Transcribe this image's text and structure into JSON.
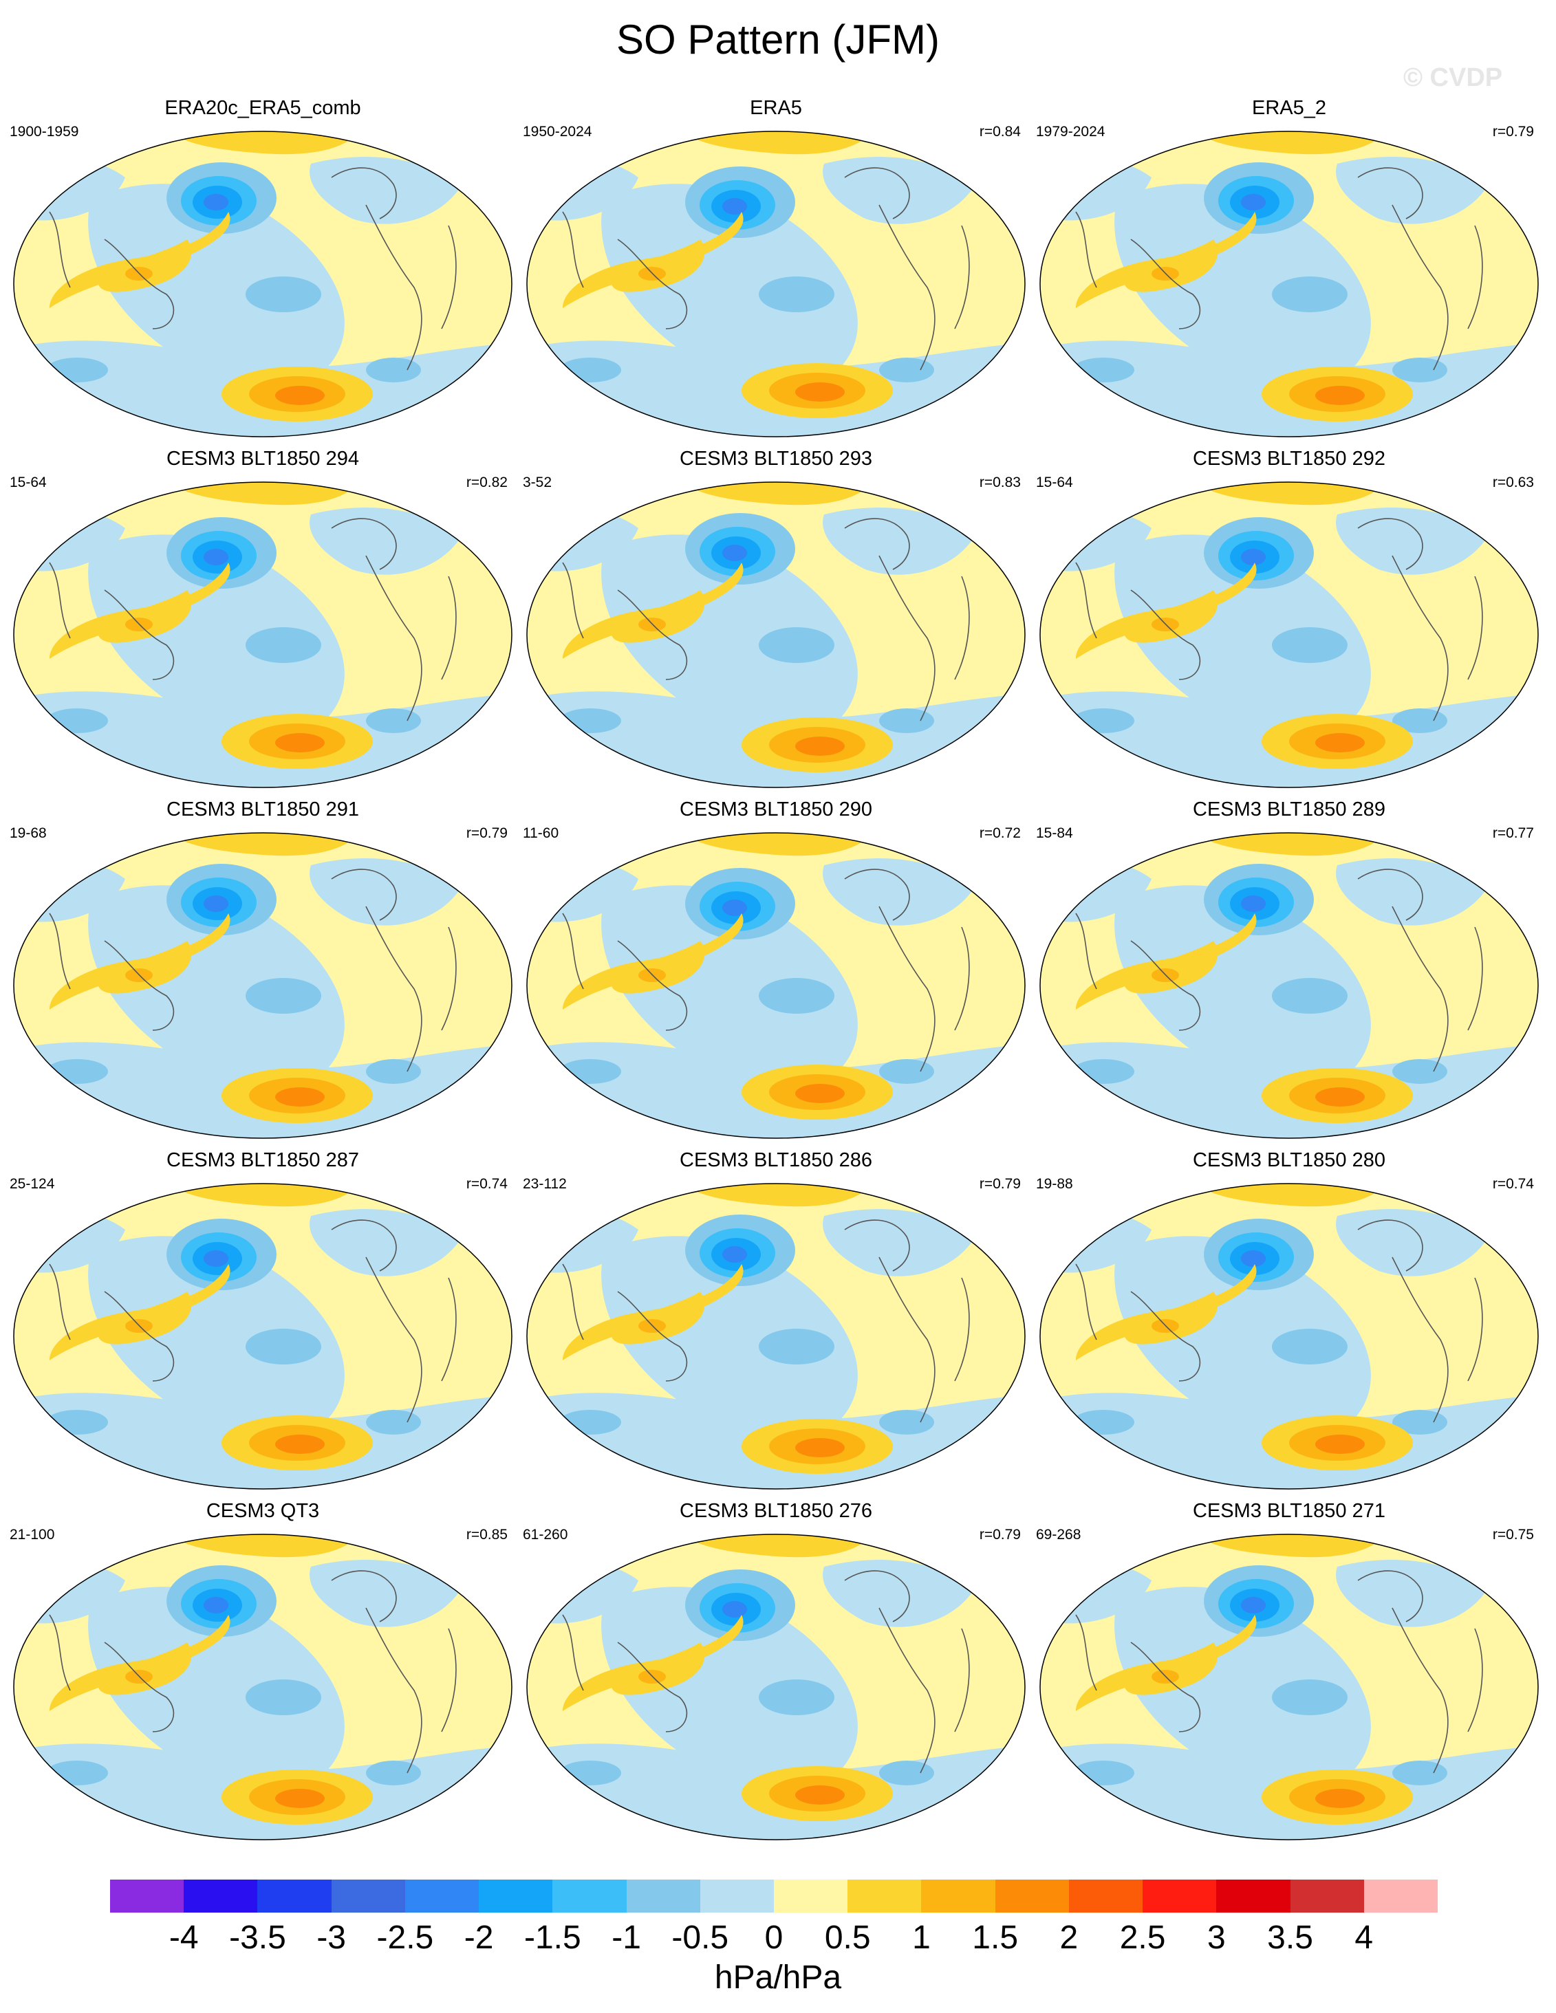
{
  "figure": {
    "title": "SO Pattern (JFM)",
    "watermark": "© CVDP",
    "units": "hPa/hPa"
  },
  "panels": [
    {
      "title": "ERA20c_ERA5_comb",
      "years": "1900-1959",
      "r": ""
    },
    {
      "title": "ERA5",
      "years": "1950-2024",
      "r": "r=0.84"
    },
    {
      "title": "ERA5_2",
      "years": "1979-2024",
      "r": "r=0.79"
    },
    {
      "title": "CESM3 BLT1850 294",
      "years": "15-64",
      "r": "r=0.82"
    },
    {
      "title": "CESM3 BLT1850 293",
      "years": "3-52",
      "r": "r=0.83"
    },
    {
      "title": "CESM3 BLT1850 292",
      "years": "15-64",
      "r": "r=0.63"
    },
    {
      "title": "CESM3 BLT1850 291",
      "years": "19-68",
      "r": "r=0.79"
    },
    {
      "title": "CESM3 BLT1850 290",
      "years": "11-60",
      "r": "r=0.72"
    },
    {
      "title": "CESM3 BLT1850 289",
      "years": "15-84",
      "r": "r=0.77"
    },
    {
      "title": "CESM3 BLT1850 287",
      "years": "25-124",
      "r": "r=0.74"
    },
    {
      "title": "CESM3 BLT1850 286",
      "years": "23-112",
      "r": "r=0.79"
    },
    {
      "title": "CESM3 BLT1850 280",
      "years": "19-88",
      "r": "r=0.74"
    },
    {
      "title": "CESM3 QT3",
      "years": "21-100",
      "r": "r=0.85"
    },
    {
      "title": "CESM3 BLT1850 276",
      "years": "61-260",
      "r": "r=0.79"
    },
    {
      "title": "CESM3 BLT1850 271",
      "years": "69-268",
      "r": "r=0.75"
    }
  ],
  "colorbar": {
    "colors": [
      "#8a2be2",
      "#2a0ff0",
      "#1e3ef0",
      "#3c6ae0",
      "#2f86f4",
      "#14a5f8",
      "#3cbef8",
      "#84c8ec",
      "#b8e0f2",
      "#fff7a6",
      "#fcd430",
      "#fcb412",
      "#fc8c08",
      "#fc5c08",
      "#ff1c10",
      "#e0000a",
      "#d23030",
      "#ffb4b4"
    ],
    "ticks": [
      "-4",
      "-3.5",
      "-3",
      "-2.5",
      "-2",
      "-1.5",
      "-1",
      "-0.5",
      "0",
      "0.5",
      "1",
      "1.5",
      "2",
      "2.5",
      "3",
      "3.5",
      "4"
    ]
  }
}
